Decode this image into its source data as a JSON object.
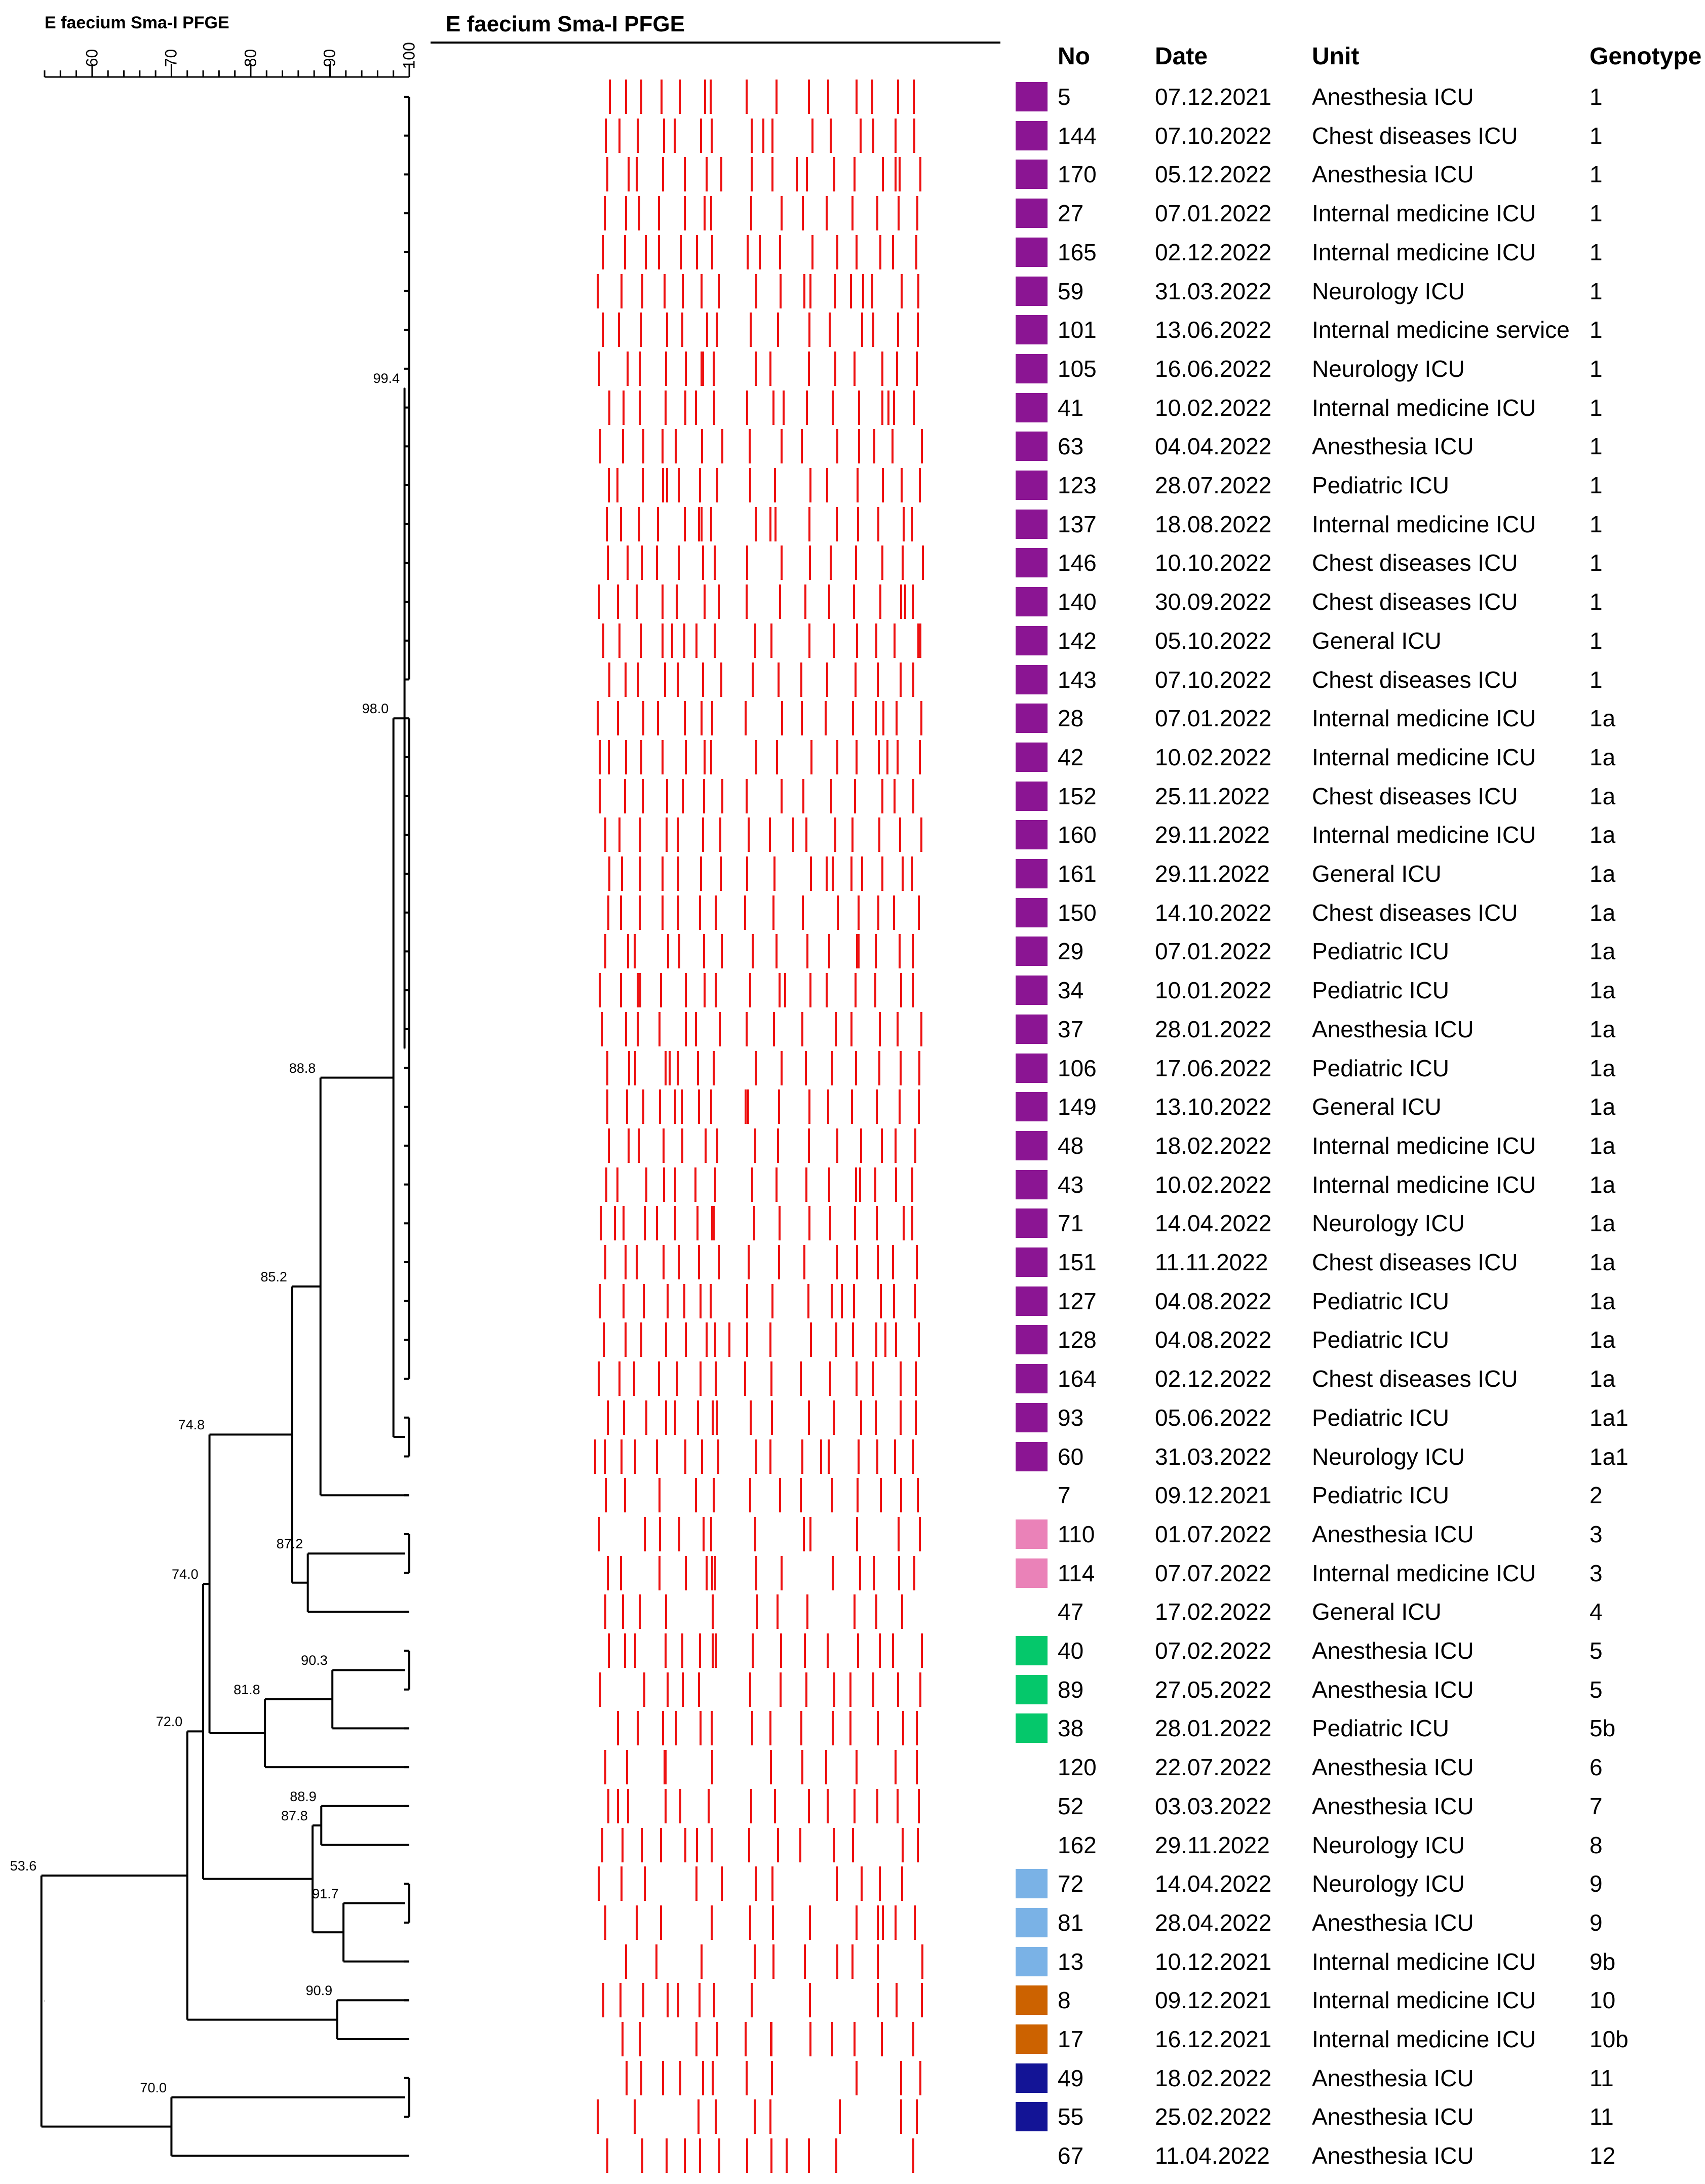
{
  "dendrogram_title": "E faecium Sma-I PFGE",
  "gel_title": "E faecium Sma-I PFGE",
  "scale": {
    "ticks": [
      60,
      70,
      80,
      90,
      100
    ],
    "min": 54,
    "max": 100
  },
  "columns": {
    "no": "No",
    "date": "Date",
    "unit": "Unit",
    "genotype": "Genotype"
  },
  "colors": {
    "purple": "#8b1593",
    "pink": "#ea82b8",
    "green": "#05c86b",
    "lightblue": "#7ab2e6",
    "orange": "#cc6200",
    "navy": "#131496",
    "band": "#ee1111",
    "line": "#000000"
  },
  "isolates": [
    {
      "no": "5",
      "date": "07.12.2021",
      "unit": "Anesthesia ICU",
      "genotype": "1",
      "color": "purple"
    },
    {
      "no": "144",
      "date": "07.10.2022",
      "unit": "Chest diseases ICU",
      "genotype": "1",
      "color": "purple"
    },
    {
      "no": "170",
      "date": "05.12.2022",
      "unit": "Anesthesia ICU",
      "genotype": "1",
      "color": "purple"
    },
    {
      "no": "27",
      "date": "07.01.2022",
      "unit": "Internal medicine ICU",
      "genotype": "1",
      "color": "purple"
    },
    {
      "no": "165",
      "date": "02.12.2022",
      "unit": "Internal medicine ICU",
      "genotype": "1",
      "color": "purple"
    },
    {
      "no": "59",
      "date": "31.03.2022",
      "unit": "Neurology ICU",
      "genotype": "1",
      "color": "purple"
    },
    {
      "no": "101",
      "date": "13.06.2022",
      "unit": "Internal medicine service",
      "genotype": "1",
      "color": "purple"
    },
    {
      "no": "105",
      "date": "16.06.2022",
      "unit": "Neurology ICU",
      "genotype": "1",
      "color": "purple"
    },
    {
      "no": "41",
      "date": "10.02.2022",
      "unit": "Internal medicine ICU",
      "genotype": "1",
      "color": "purple"
    },
    {
      "no": "63",
      "date": "04.04.2022",
      "unit": "Anesthesia ICU",
      "genotype": "1",
      "color": "purple"
    },
    {
      "no": "123",
      "date": "28.07.2022",
      "unit": "Pediatric ICU",
      "genotype": "1",
      "color": "purple"
    },
    {
      "no": "137",
      "date": "18.08.2022",
      "unit": "Internal medicine ICU",
      "genotype": "1",
      "color": "purple"
    },
    {
      "no": "146",
      "date": "10.10.2022",
      "unit": "Chest diseases ICU",
      "genotype": "1",
      "color": "purple"
    },
    {
      "no": "140",
      "date": "30.09.2022",
      "unit": "Chest diseases ICU",
      "genotype": "1",
      "color": "purple"
    },
    {
      "no": "142",
      "date": "05.10.2022",
      "unit": "General ICU",
      "genotype": "1",
      "color": "purple"
    },
    {
      "no": "143",
      "date": "07.10.2022",
      "unit": "Chest diseases ICU",
      "genotype": "1",
      "color": "purple"
    },
    {
      "no": "28",
      "date": "07.01.2022",
      "unit": "Internal medicine ICU",
      "genotype": "1a",
      "color": "purple"
    },
    {
      "no": "42",
      "date": "10.02.2022",
      "unit": "Internal medicine ICU",
      "genotype": "1a",
      "color": "purple"
    },
    {
      "no": "152",
      "date": "25.11.2022",
      "unit": "Chest diseases ICU",
      "genotype": "1a",
      "color": "purple"
    },
    {
      "no": "160",
      "date": "29.11.2022",
      "unit": "Internal medicine ICU",
      "genotype": "1a",
      "color": "purple"
    },
    {
      "no": "161",
      "date": "29.11.2022",
      "unit": "General ICU",
      "genotype": "1a",
      "color": "purple"
    },
    {
      "no": "150",
      "date": "14.10.2022",
      "unit": "Chest diseases ICU",
      "genotype": "1a",
      "color": "purple"
    },
    {
      "no": "29",
      "date": "07.01.2022",
      "unit": "Pediatric ICU",
      "genotype": "1a",
      "color": "purple"
    },
    {
      "no": "34",
      "date": "10.01.2022",
      "unit": "Pediatric ICU",
      "genotype": "1a",
      "color": "purple"
    },
    {
      "no": "37",
      "date": "28.01.2022",
      "unit": "Anesthesia ICU",
      "genotype": "1a",
      "color": "purple"
    },
    {
      "no": "106",
      "date": "17.06.2022",
      "unit": "Pediatric ICU",
      "genotype": "1a",
      "color": "purple"
    },
    {
      "no": "149",
      "date": "13.10.2022",
      "unit": "General ICU",
      "genotype": "1a",
      "color": "purple"
    },
    {
      "no": "48",
      "date": "18.02.2022",
      "unit": "Internal medicine ICU",
      "genotype": "1a",
      "color": "purple"
    },
    {
      "no": "43",
      "date": "10.02.2022",
      "unit": "Internal medicine ICU",
      "genotype": "1a",
      "color": "purple"
    },
    {
      "no": "71",
      "date": "14.04.2022",
      "unit": "Neurology ICU",
      "genotype": "1a",
      "color": "purple"
    },
    {
      "no": "151",
      "date": "11.11.2022",
      "unit": "Chest diseases ICU",
      "genotype": "1a",
      "color": "purple"
    },
    {
      "no": "127",
      "date": "04.08.2022",
      "unit": "Pediatric ICU",
      "genotype": "1a",
      "color": "purple"
    },
    {
      "no": "128",
      "date": "04.08.2022",
      "unit": "Pediatric ICU",
      "genotype": "1a",
      "color": "purple"
    },
    {
      "no": "164",
      "date": "02.12.2022",
      "unit": "Chest diseases ICU",
      "genotype": "1a",
      "color": "purple"
    },
    {
      "no": "93",
      "date": "05.06.2022",
      "unit": "Pediatric ICU",
      "genotype": "1a1",
      "color": "purple"
    },
    {
      "no": "60",
      "date": "31.03.2022",
      "unit": "Neurology ICU",
      "genotype": "1a1",
      "color": "purple"
    },
    {
      "no": "7",
      "date": "09.12.2021",
      "unit": "Pediatric ICU",
      "genotype": "2",
      "color": ""
    },
    {
      "no": "110",
      "date": "01.07.2022",
      "unit": "Anesthesia ICU",
      "genotype": "3",
      "color": "pink"
    },
    {
      "no": "114",
      "date": "07.07.2022",
      "unit": "Internal medicine ICU",
      "genotype": "3",
      "color": "pink"
    },
    {
      "no": "47",
      "date": "17.02.2022",
      "unit": "General ICU",
      "genotype": "4",
      "color": ""
    },
    {
      "no": "40",
      "date": "07.02.2022",
      "unit": "Anesthesia ICU",
      "genotype": "5",
      "color": "green"
    },
    {
      "no": "89",
      "date": "27.05.2022",
      "unit": "Anesthesia ICU",
      "genotype": "5",
      "color": "green"
    },
    {
      "no": "38",
      "date": "28.01.2022",
      "unit": "Pediatric ICU",
      "genotype": "5b",
      "color": "green"
    },
    {
      "no": "120",
      "date": "22.07.2022",
      "unit": "Anesthesia ICU",
      "genotype": "6",
      "color": ""
    },
    {
      "no": "52",
      "date": "03.03.2022",
      "unit": "Anesthesia ICU",
      "genotype": "7",
      "color": ""
    },
    {
      "no": "162",
      "date": "29.11.2022",
      "unit": "Neurology ICU",
      "genotype": "8",
      "color": ""
    },
    {
      "no": "72",
      "date": "14.04.2022",
      "unit": "Neurology ICU",
      "genotype": "9",
      "color": "lightblue"
    },
    {
      "no": "81",
      "date": "28.04.2022",
      "unit": "Anesthesia ICU",
      "genotype": "9",
      "color": "lightblue"
    },
    {
      "no": "13",
      "date": "10.12.2021",
      "unit": "Internal medicine ICU",
      "genotype": "9b",
      "color": "lightblue"
    },
    {
      "no": "8",
      "date": "09.12.2021",
      "unit": "Internal medicine ICU",
      "genotype": "10",
      "color": "orange"
    },
    {
      "no": "17",
      "date": "16.12.2021",
      "unit": "Internal medicine ICU",
      "genotype": "10b",
      "color": "orange"
    },
    {
      "no": "49",
      "date": "18.02.2022",
      "unit": "Anesthesia ICU",
      "genotype": "11",
      "color": "navy"
    },
    {
      "no": "55",
      "date": "25.02.2022",
      "unit": "Anesthesia ICU",
      "genotype": "11",
      "color": "navy"
    },
    {
      "no": "67",
      "date": "11.04.2022",
      "unit": "Anesthesia ICU",
      "genotype": "12",
      "color": ""
    }
  ],
  "dendrogram_nodes": [
    {
      "id": "n99_4",
      "label": "99.4",
      "similarity": 99.4,
      "children": [
        "rows0-15",
        "rows16-33"
      ]
    },
    {
      "id": "n98_0",
      "label": "98.0",
      "similarity": 98.0,
      "children": [
        "n99_4",
        "rows34-35"
      ]
    },
    {
      "id": "n88_8",
      "label": "88.8",
      "similarity": 88.8,
      "children": [
        "n98_0",
        "row36"
      ]
    },
    {
      "id": "n87_2",
      "label": "87.2",
      "similarity": 87.2,
      "children": [
        "rows37-38",
        "row39"
      ]
    },
    {
      "id": "n85_2",
      "label": "85.2",
      "similarity": 85.2,
      "children": [
        "n88_8",
        "n87_2"
      ]
    },
    {
      "id": "n90_3",
      "label": "90.3",
      "similarity": 90.3,
      "children": [
        "rows40-41",
        "row42"
      ]
    },
    {
      "id": "n81_8",
      "label": "81.8",
      "similarity": 81.8,
      "children": [
        "n90_3",
        "row43"
      ]
    },
    {
      "id": "n74_8",
      "label": "74.8",
      "similarity": 74.8,
      "children": [
        "n85_2",
        "n81_8"
      ]
    },
    {
      "id": "n88_9",
      "label": "88.9",
      "similarity": 88.9,
      "children": [
        "row44",
        "row45"
      ]
    },
    {
      "id": "n91_7",
      "label": "91.7",
      "similarity": 91.7,
      "children": [
        "rows46-47",
        "row48"
      ]
    },
    {
      "id": "n87_8",
      "label": "87.8",
      "similarity": 87.8,
      "children": [
        "n88_9",
        "n91_7"
      ]
    },
    {
      "id": "n74_0",
      "label": "74.0",
      "similarity": 74.0,
      "children": [
        "n74_8",
        "n87_8"
      ]
    },
    {
      "id": "n90_9",
      "label": "90.9",
      "similarity": 90.9,
      "children": [
        "row49",
        "row50"
      ]
    },
    {
      "id": "n72_0",
      "label": "72.0",
      "similarity": 72.0,
      "children": [
        "n74_0",
        "n90_9"
      ]
    },
    {
      "id": "n70_0",
      "label": "70.0",
      "similarity": 70.0,
      "children": [
        "rows51-52",
        "row53"
      ]
    },
    {
      "id": "n53_6",
      "label": "53.6",
      "similarity": 53.6,
      "children": [
        "n72_0",
        "n70_0"
      ]
    }
  ]
}
